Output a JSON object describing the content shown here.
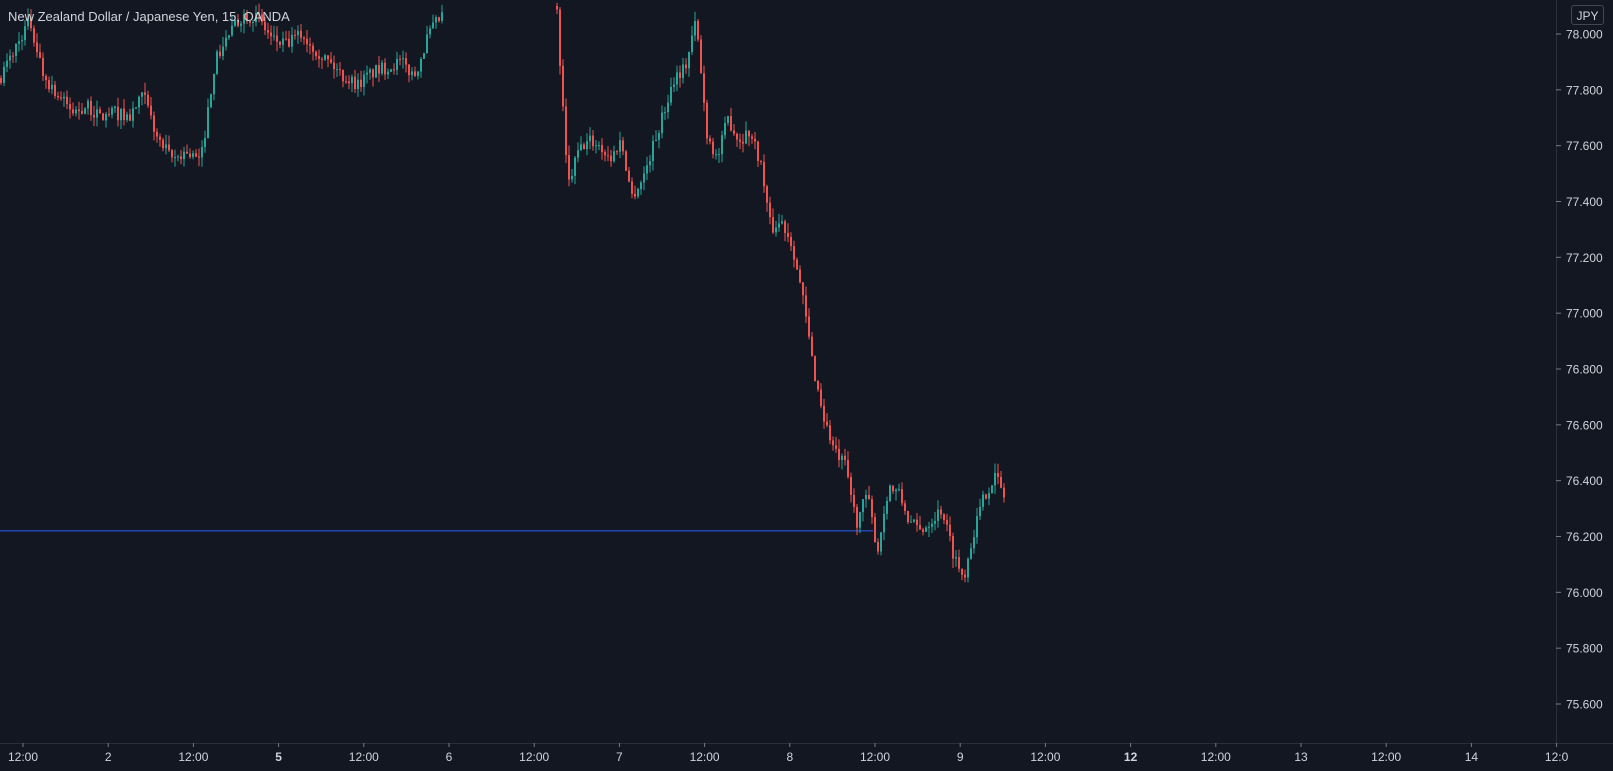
{
  "legend": {
    "title": "New Zealand Dollar / Japanese Yen, 15, OANDA"
  },
  "currency_button": {
    "label": "JPY"
  },
  "colors": {
    "background": "#131722",
    "up": "#26a69a",
    "down": "#ef5350",
    "text": "#d1d4dc",
    "axis_line": "#2a2e39",
    "price_line": "#2962ff"
  },
  "chart_data": {
    "type": "candlestick",
    "title": "New Zealand Dollar / Japanese Yen, 15, OANDA",
    "symbol": "NZDJPY",
    "interval": "15",
    "source": "OANDA",
    "currency": "JPY",
    "y_axis": {
      "side": "right",
      "range": [
        75.52,
        78.07
      ],
      "ticks": [
        "78.000",
        "77.800",
        "77.600",
        "77.400",
        "77.200",
        "77.000",
        "76.800",
        "76.600",
        "76.400",
        "76.200",
        "76.000",
        "75.800",
        "75.600"
      ]
    },
    "x_axis": {
      "ticks": [
        {
          "label": "12:00",
          "bold": false
        },
        {
          "label": "2",
          "bold": false
        },
        {
          "label": "12:00",
          "bold": false
        },
        {
          "label": "5",
          "bold": true
        },
        {
          "label": "12:00",
          "bold": false
        },
        {
          "label": "6",
          "bold": false
        },
        {
          "label": "12:00",
          "bold": false
        },
        {
          "label": "7",
          "bold": false
        },
        {
          "label": "12:00",
          "bold": false
        },
        {
          "label": "8",
          "bold": false
        },
        {
          "label": "12:00",
          "bold": false
        },
        {
          "label": "9",
          "bold": false
        },
        {
          "label": "12:00",
          "bold": false
        },
        {
          "label": "12",
          "bold": true
        },
        {
          "label": "12:00",
          "bold": false
        },
        {
          "label": "13",
          "bold": false
        },
        {
          "label": "12:00",
          "bold": false
        },
        {
          "label": "14",
          "bold": false
        },
        {
          "label": "12:0",
          "bold": false
        }
      ]
    },
    "horizontal_line": {
      "price": 76.22
    },
    "price_path_segments": [
      [
        [
          77.85,
          0
        ],
        [
          77.95,
          1
        ],
        [
          78.05,
          2
        ],
        [
          77.85,
          3
        ],
        [
          77.78,
          4
        ],
        [
          77.72,
          5
        ],
        [
          77.74,
          6
        ],
        [
          77.7,
          7
        ],
        [
          77.72,
          8
        ],
        [
          77.7,
          9
        ],
        [
          77.78,
          10
        ],
        [
          77.62,
          11
        ],
        [
          77.55,
          12
        ],
        [
          77.58,
          13
        ],
        [
          77.54,
          14
        ],
        [
          77.9,
          15
        ],
        [
          78.0,
          16
        ],
        [
          78.07,
          17
        ],
        [
          78.06,
          18
        ],
        [
          77.98,
          19
        ],
        [
          77.96,
          20
        ],
        [
          78.0,
          21
        ],
        [
          77.95,
          22
        ],
        [
          77.9,
          23
        ],
        [
          77.85,
          24
        ],
        [
          77.82,
          25
        ],
        [
          77.86,
          26
        ],
        [
          77.88,
          27
        ],
        [
          77.9,
          28
        ],
        [
          77.85,
          29
        ],
        [
          78.0,
          30
        ],
        [
          78.07,
          31
        ]
      ],
      [
        [
          78.07,
          0
        ],
        [
          77.45,
          1
        ],
        [
          77.58,
          2
        ],
        [
          77.62,
          3
        ],
        [
          77.6,
          4
        ],
        [
          77.55,
          5
        ],
        [
          77.62,
          6
        ],
        [
          77.42,
          7
        ],
        [
          77.48,
          8
        ],
        [
          77.6,
          9
        ],
        [
          77.72,
          10
        ],
        [
          77.85,
          11
        ],
        [
          77.88,
          12
        ],
        [
          78.05,
          13
        ],
        [
          77.65,
          14
        ],
        [
          77.55,
          15
        ],
        [
          77.7,
          16
        ],
        [
          77.62,
          17
        ],
        [
          77.65,
          18
        ],
        [
          77.55,
          19
        ],
        [
          77.3,
          20
        ],
        [
          77.33,
          21
        ],
        [
          77.25,
          22
        ],
        [
          77.05,
          23
        ],
        [
          76.8,
          24
        ],
        [
          76.62,
          25
        ],
        [
          76.5,
          26
        ],
        [
          76.45,
          27
        ],
        [
          76.25,
          28
        ],
        [
          76.35,
          29
        ],
        [
          76.15,
          30
        ],
        [
          76.38,
          31
        ],
        [
          76.35,
          32
        ],
        [
          76.25,
          33
        ],
        [
          76.22,
          34
        ],
        [
          76.26,
          35
        ],
        [
          76.3,
          36
        ],
        [
          76.15,
          37
        ],
        [
          76.05,
          38
        ],
        [
          76.22,
          39
        ],
        [
          76.35,
          40
        ],
        [
          76.42,
          41
        ],
        [
          76.33,
          42
        ]
      ]
    ]
  }
}
